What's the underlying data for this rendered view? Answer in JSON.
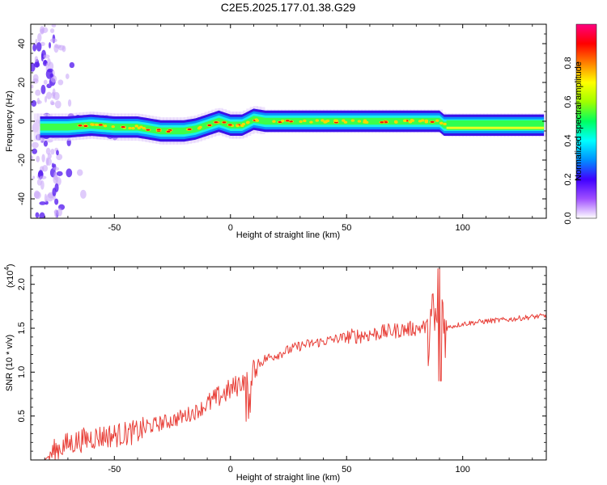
{
  "title": "C2E5.2025.177.01.38.G29",
  "chart_data": [
    {
      "type": "heatmap",
      "xlabel": "Height of straight line (km)",
      "ylabel": "Frequency (Hz)",
      "xlim": [
        -86,
        136
      ],
      "ylim": [
        -50,
        50
      ],
      "xticks": [
        -50,
        0,
        50,
        100
      ],
      "yticks": [
        -40,
        -20,
        0,
        20,
        40
      ],
      "ridge": {
        "x": [
          -80,
          -70,
          -60,
          -50,
          -40,
          -35,
          -30,
          -25,
          -20,
          -15,
          -10,
          -5,
          0,
          5,
          10,
          15,
          25,
          50,
          75,
          90,
          92,
          135
        ],
        "y": [
          -3,
          -3,
          -2,
          -3,
          -3,
          -4,
          -5,
          -5,
          -5,
          -4,
          -2,
          0,
          -2,
          -2,
          1,
          0,
          0,
          0,
          0,
          0,
          -2,
          -2
        ]
      },
      "colorbar": {
        "label": "Normalized spectral amplitude",
        "range": [
          0,
          1
        ],
        "ticks": [
          "0.0",
          "0.2",
          "0.4",
          "0.6",
          "0.8"
        ],
        "tick_values": [
          0,
          0.2,
          0.4,
          0.6,
          0.8
        ],
        "colors": [
          "#ffffff",
          "#a050ff",
          "#4000ff",
          "#0090ff",
          "#00ffff",
          "#00ff60",
          "#a0ff00",
          "#ffff00",
          "#ff8000",
          "#ff0000",
          "#ff0080"
        ]
      }
    },
    {
      "type": "line",
      "xlabel": "Height of straight line (km)",
      "ylabel": "SNR (10 * v/v)",
      "y_exponent": "(x10",
      "y_exponent_power": "4",
      "y_exponent_close": ")",
      "xlim": [
        -86,
        136
      ],
      "ylim": [
        0,
        2.2
      ],
      "xticks": [
        -50,
        0,
        50,
        100
      ],
      "yticks": [
        0.5,
        1.0,
        1.5,
        2.0
      ],
      "ytick_labels": [
        "0.5",
        "1.0",
        "1.5",
        "2.0"
      ],
      "color": "#e8413a",
      "series": [
        {
          "x": [
            -86,
            -80,
            -78,
            -75,
            -70,
            -65,
            -60,
            -55,
            -50,
            -45,
            -40,
            -35,
            -30,
            -25,
            -20,
            -15,
            -10,
            -5,
            0,
            3,
            5,
            8,
            10,
            15,
            20,
            25,
            30,
            40,
            50,
            60,
            70,
            80,
            85,
            88,
            90,
            91,
            92,
            93,
            95,
            100,
            110,
            120,
            130,
            136
          ],
          "y": [
            0.0,
            0.0,
            0.05,
            0.12,
            0.18,
            0.22,
            0.25,
            0.27,
            0.28,
            0.3,
            0.32,
            0.38,
            0.42,
            0.45,
            0.5,
            0.55,
            0.63,
            0.72,
            0.8,
            0.85,
            0.9,
            0.95,
            1.05,
            1.15,
            1.2,
            1.25,
            1.3,
            1.35,
            1.4,
            1.43,
            1.47,
            1.5,
            1.52,
            1.55,
            1.6,
            1.8,
            1.5,
            1.5,
            1.52,
            1.55,
            1.58,
            1.6,
            1.63,
            1.64
          ]
        }
      ]
    }
  ]
}
